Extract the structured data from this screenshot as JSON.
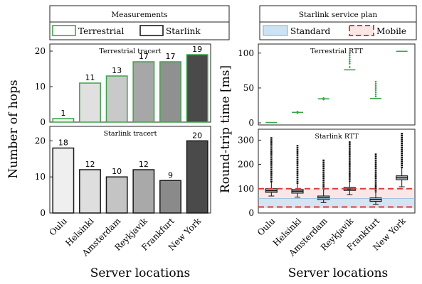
{
  "colors": {
    "terrestrial_edge": "#3aa64a",
    "starlink_edge": "#1a1a1a",
    "standard_fill": "#cce3f4",
    "standard_edge": "#8fb8d8",
    "mobile_edge": "#e03a3a",
    "mobile_fill": "#fbe6e6"
  },
  "chart_data": [
    {
      "type": "bar",
      "id": "terrestrial-hops",
      "panel_title": "Terrestrial tracert",
      "categories": [
        "Oulu",
        "Helsinki",
        "Amsterdam",
        "Reykjavik",
        "Frankfurt",
        "New York"
      ],
      "values": [
        1,
        11,
        13,
        17,
        17,
        19
      ],
      "data_labels": [
        "1",
        "11",
        "13",
        "17",
        "17",
        "19"
      ],
      "ylim": [
        0,
        22
      ],
      "yticks": [
        "0",
        "10",
        "20"
      ],
      "bar_fills": [
        "#f0f0f0",
        "#e0e0e0",
        "#c9c9c9",
        "#a7a7a7",
        "#909090",
        "#4a4a4a"
      ],
      "edge": "terrestrial"
    },
    {
      "type": "bar",
      "id": "starlink-hops",
      "panel_title": "Starlink tracert",
      "categories": [
        "Oulu",
        "Helsinki",
        "Amsterdam",
        "Reykjavik",
        "Frankfurt",
        "New York"
      ],
      "values": [
        18,
        12,
        10,
        12,
        9,
        20
      ],
      "data_labels": [
        "18",
        "12",
        "10",
        "12",
        "9",
        "20"
      ],
      "ylim": [
        0,
        24
      ],
      "yticks": [
        "0",
        "10",
        "20"
      ],
      "bar_fills": [
        "#efefef",
        "#dedede",
        "#c4c4c4",
        "#a9a9a9",
        "#8a8a8a",
        "#4a4a4a"
      ],
      "edge": "starlink"
    },
    {
      "type": "box",
      "id": "terrestrial-rtt",
      "panel_title": "Terrestrial RTT",
      "categories": [
        "Oulu",
        "Helsinki",
        "Amsterdam",
        "Reykjavik",
        "Frankfurt",
        "New York"
      ],
      "medians": [
        0.5,
        15,
        34.5,
        76,
        35,
        102.5
      ],
      "outliers": [
        [],
        [
          14,
          16
        ],
        [
          33.5,
          35.5
        ],
        [
          80,
          85,
          88,
          91,
          94,
          97,
          100
        ],
        [
          38,
          41,
          44,
          47,
          50,
          53,
          56,
          59
        ],
        []
      ],
      "ylim": [
        -3,
        113
      ],
      "yticks": [
        "0",
        "50",
        "100"
      ]
    },
    {
      "type": "box",
      "id": "starlink-rtt",
      "panel_title": "Starlink RTT",
      "categories": [
        "Oulu",
        "Helsinki",
        "Amsterdam",
        "Reykjavik",
        "Frankfurt",
        "New York"
      ],
      "boxes": [
        {
          "lw": 70,
          "q1": 85,
          "median": 92,
          "q3": 100,
          "uw": 125,
          "omax": 312
        },
        {
          "lw": 65,
          "q1": 82,
          "median": 90,
          "q3": 97,
          "uw": 120,
          "omax": 280
        },
        {
          "lw": 43,
          "q1": 55,
          "median": 62,
          "q3": 70,
          "uw": 95,
          "omax": 220
        },
        {
          "lw": 75,
          "q1": 93,
          "median": 99,
          "q3": 105,
          "uw": 128,
          "omax": 295
        },
        {
          "lw": 35,
          "q1": 48,
          "median": 55,
          "q3": 62,
          "uw": 85,
          "omax": 245
        },
        {
          "lw": 108,
          "q1": 137,
          "median": 145,
          "q3": 153,
          "uw": 185,
          "omax": 330
        }
      ],
      "standard_band": [
        20,
        60
      ],
      "mobile_band": [
        25,
        100
      ],
      "ylim": [
        0,
        345
      ],
      "yticks": [
        "0",
        "100",
        "200",
        "300"
      ]
    }
  ],
  "labels": {
    "left_ylabel": "Number of hops",
    "right_ylabel": "Round-trip time [ms]",
    "left_xlabel": "Server locations",
    "right_xlabel": "Server locations"
  },
  "legend_left": {
    "title": "Measurements",
    "items": [
      "Terrestrial",
      "Starlink"
    ]
  },
  "legend_right": {
    "title": "Starlink service plan",
    "items": [
      "Standard",
      "Mobile"
    ]
  }
}
